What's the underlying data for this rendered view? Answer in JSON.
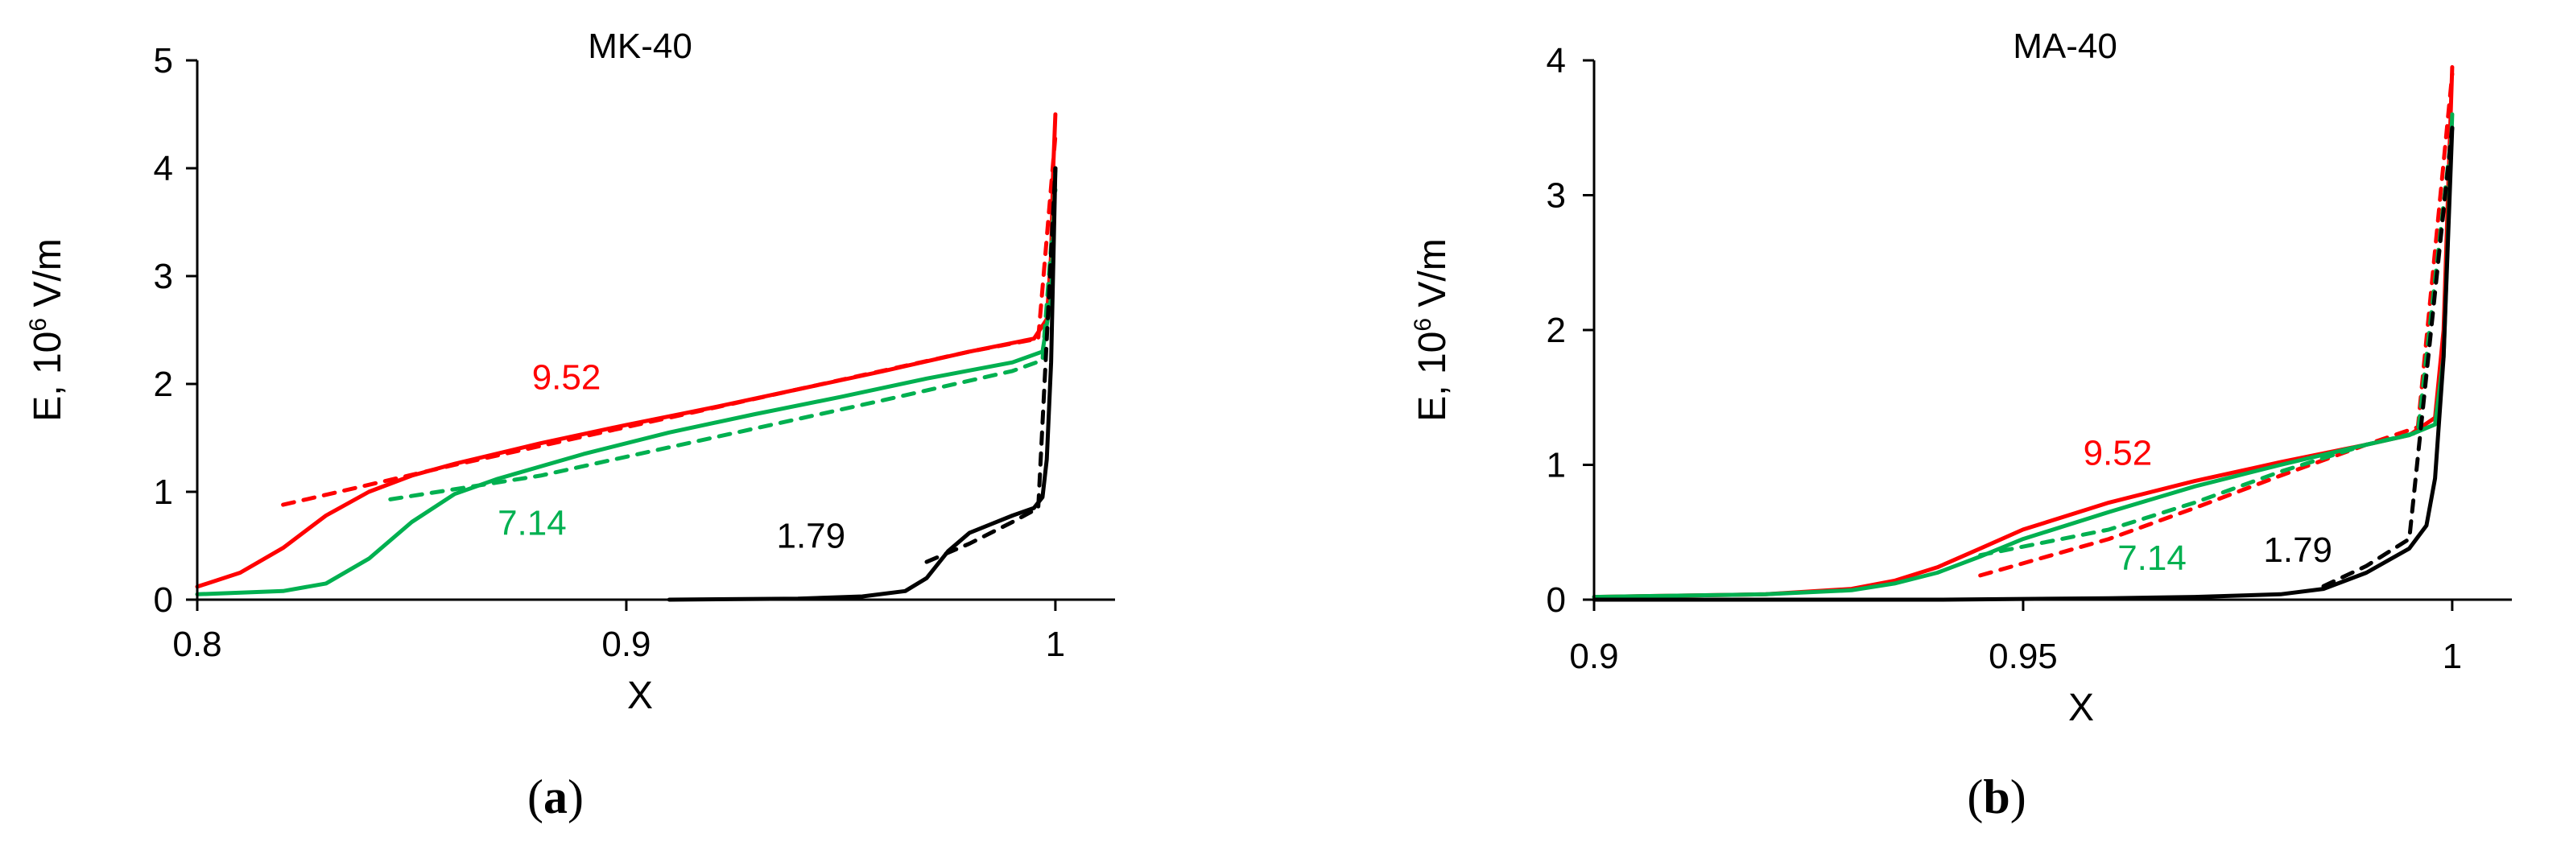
{
  "chart_data": [
    {
      "type": "line",
      "title": "MK-40",
      "xlabel": "X",
      "ylabel_prefix": "E, 10",
      "ylabel_sup": "6",
      "ylabel_suffix": " V/m",
      "xlim": [
        0.8,
        1.0
      ],
      "ylim": [
        0,
        5
      ],
      "xticks": [
        "0.8",
        "0.9",
        "1"
      ],
      "yticks": [
        "0",
        "1",
        "2",
        "3",
        "4",
        "5"
      ],
      "caption_open": "(",
      "caption_letter": "a",
      "caption_close": ")",
      "grid": false,
      "legend": "none",
      "annotations": [
        {
          "text": "9.52",
          "x": 0.878,
          "y": 1.95,
          "color": "#ff0000"
        },
        {
          "text": "7.14",
          "x": 0.87,
          "y": 0.6,
          "color": "#00b050"
        },
        {
          "text": "1.79",
          "x": 0.935,
          "y": 0.48,
          "color": "#000000"
        }
      ],
      "series": [
        {
          "label": "9.52",
          "style": "solid",
          "color": "#ff0000",
          "x": [
            0.8,
            0.81,
            0.82,
            0.83,
            0.84,
            0.85,
            0.86,
            0.88,
            0.9,
            0.92,
            0.94,
            0.96,
            0.98,
            0.995,
            0.998,
            0.999,
            0.9995,
            1.0
          ],
          "y": [
            0.12,
            0.25,
            0.48,
            0.78,
            1.0,
            1.15,
            1.26,
            1.45,
            1.62,
            1.78,
            1.95,
            2.12,
            2.3,
            2.42,
            2.6,
            3.2,
            4.0,
            4.5
          ]
        },
        {
          "label": "9.52",
          "style": "dashed",
          "color": "#ff0000",
          "x": [
            0.82,
            0.86,
            0.9,
            0.94,
            0.98,
            0.996,
            1.0
          ],
          "y": [
            0.88,
            1.25,
            1.6,
            1.95,
            2.3,
            2.42,
            4.3
          ]
        },
        {
          "label": "7.14",
          "style": "solid",
          "color": "#00b050",
          "x": [
            0.8,
            0.82,
            0.83,
            0.84,
            0.85,
            0.86,
            0.87,
            0.89,
            0.91,
            0.93,
            0.95,
            0.97,
            0.99,
            0.997,
            0.999,
            1.0
          ],
          "y": [
            0.05,
            0.08,
            0.15,
            0.38,
            0.72,
            0.98,
            1.12,
            1.35,
            1.55,
            1.72,
            1.88,
            2.05,
            2.2,
            2.3,
            2.8,
            4.0
          ]
        },
        {
          "label": "7.14",
          "style": "dashed",
          "color": "#00b050",
          "x": [
            0.845,
            0.88,
            0.92,
            0.96,
            0.99,
            0.997,
            1.0
          ],
          "y": [
            0.93,
            1.15,
            1.5,
            1.85,
            2.12,
            2.22,
            3.8
          ]
        },
        {
          "label": "1.79",
          "style": "solid",
          "color": "#000000",
          "x": [
            0.91,
            0.94,
            0.955,
            0.965,
            0.97,
            0.975,
            0.98,
            0.985,
            0.99,
            0.995,
            0.997,
            0.998,
            0.999,
            1.0
          ],
          "y": [
            0.0,
            0.01,
            0.03,
            0.08,
            0.2,
            0.45,
            0.62,
            0.7,
            0.78,
            0.85,
            0.95,
            1.3,
            2.2,
            4.0
          ]
        },
        {
          "label": "1.79",
          "style": "dashed",
          "color": "#000000",
          "x": [
            0.97,
            0.98,
            0.99,
            0.996,
            1.0
          ],
          "y": [
            0.35,
            0.52,
            0.72,
            0.85,
            4.0
          ]
        }
      ]
    },
    {
      "type": "line",
      "title": "MA-40",
      "xlabel": "X",
      "ylabel_prefix": "E, 10",
      "ylabel_sup": "6",
      "ylabel_suffix": " V/m",
      "xlim": [
        0.9,
        1.0
      ],
      "ylim": [
        0,
        4
      ],
      "xticks": [
        "0.9",
        "0.95",
        "1"
      ],
      "yticks": [
        "0",
        "1",
        "2",
        "3",
        "4"
      ],
      "caption_open": "(",
      "caption_letter": "b",
      "caption_close": ")",
      "grid": false,
      "legend": "none",
      "annotations": [
        {
          "text": "9.52",
          "x": 0.957,
          "y": 1.0,
          "color": "#ff0000"
        },
        {
          "text": "7.14",
          "x": 0.961,
          "y": 0.22,
          "color": "#00b050"
        },
        {
          "text": "1.79",
          "x": 0.978,
          "y": 0.28,
          "color": "#000000"
        }
      ],
      "series": [
        {
          "label": "9.52",
          "style": "solid",
          "color": "#ff0000",
          "x": [
            0.9,
            0.92,
            0.93,
            0.935,
            0.94,
            0.945,
            0.95,
            0.96,
            0.97,
            0.98,
            0.99,
            0.995,
            0.998,
            0.999,
            1.0
          ],
          "y": [
            0.02,
            0.04,
            0.08,
            0.14,
            0.24,
            0.38,
            0.52,
            0.72,
            0.88,
            1.02,
            1.15,
            1.22,
            1.35,
            2.0,
            3.95
          ]
        },
        {
          "label": "9.52",
          "style": "dashed",
          "color": "#ff0000",
          "x": [
            0.945,
            0.96,
            0.97,
            0.98,
            0.99,
            0.996,
            1.0
          ],
          "y": [
            0.18,
            0.45,
            0.68,
            0.92,
            1.15,
            1.28,
            3.9
          ]
        },
        {
          "label": "7.14",
          "style": "solid",
          "color": "#00b050",
          "x": [
            0.9,
            0.92,
            0.93,
            0.935,
            0.94,
            0.945,
            0.95,
            0.96,
            0.97,
            0.98,
            0.99,
            0.995,
            0.998,
            0.999,
            1.0
          ],
          "y": [
            0.02,
            0.04,
            0.07,
            0.12,
            0.2,
            0.32,
            0.45,
            0.65,
            0.84,
            1.0,
            1.15,
            1.22,
            1.3,
            1.8,
            3.6
          ]
        },
        {
          "label": "7.14",
          "style": "dashed",
          "color": "#00b050",
          "x": [
            0.945,
            0.96,
            0.97,
            0.98,
            0.99,
            0.996,
            1.0
          ],
          "y": [
            0.33,
            0.52,
            0.72,
            0.95,
            1.15,
            1.24,
            3.5
          ]
        },
        {
          "label": "1.79",
          "style": "solid",
          "color": "#000000",
          "x": [
            0.9,
            0.94,
            0.96,
            0.97,
            0.98,
            0.985,
            0.99,
            0.995,
            0.997,
            0.998,
            0.999,
            1.0
          ],
          "y": [
            0.0,
            0.0,
            0.01,
            0.02,
            0.04,
            0.08,
            0.2,
            0.38,
            0.55,
            0.9,
            1.8,
            3.5
          ]
        },
        {
          "label": "1.79",
          "style": "dashed",
          "color": "#000000",
          "x": [
            0.985,
            0.99,
            0.995,
            1.0
          ],
          "y": [
            0.1,
            0.25,
            0.45,
            3.5
          ]
        }
      ]
    }
  ]
}
